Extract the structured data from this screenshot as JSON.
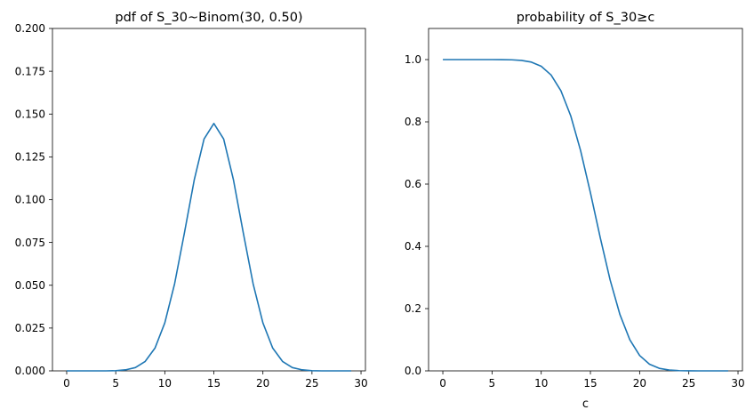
{
  "chart_data": [
    {
      "type": "line",
      "title": "pdf of S_30~Binom(30, 0.50)",
      "xlabel": "",
      "ylabel": "",
      "xlim": [
        -1.45,
        30.45
      ],
      "ylim": [
        0,
        0.2
      ],
      "xticks": [
        0,
        5,
        10,
        15,
        20,
        25,
        30
      ],
      "xtick_labels": [
        "0",
        "5",
        "10",
        "15",
        "20",
        "25",
        "30"
      ],
      "yticks": [
        0,
        0.025,
        0.05,
        0.075,
        0.1,
        0.125,
        0.15,
        0.175,
        0.2
      ],
      "ytick_labels": [
        "0.000",
        "0.025",
        "0.050",
        "0.075",
        "0.100",
        "0.125",
        "0.150",
        "0.175",
        "0.200"
      ],
      "grid": false,
      "color": "#1f77b4",
      "x": [
        0,
        1,
        2,
        3,
        4,
        5,
        6,
        7,
        8,
        9,
        10,
        11,
        12,
        13,
        14,
        15,
        16,
        17,
        18,
        19,
        20,
        21,
        22,
        23,
        24,
        25,
        26,
        27,
        28,
        29
      ],
      "y": [
        0.0,
        0.0,
        0.0,
        0.0,
        0.0,
        0.0001,
        0.0006,
        0.0019,
        0.0055,
        0.0133,
        0.028,
        0.0509,
        0.0806,
        0.1115,
        0.1354,
        0.1445,
        0.1354,
        0.1115,
        0.0806,
        0.0509,
        0.028,
        0.0133,
        0.0055,
        0.0019,
        0.0006,
        0.0001,
        0.0,
        0.0,
        0.0,
        0.0
      ]
    },
    {
      "type": "line",
      "title": "probability of S_30≥c",
      "xlabel": "c",
      "ylabel": "",
      "xlim": [
        -1.45,
        30.45
      ],
      "ylim": [
        0,
        1.1
      ],
      "xticks": [
        0,
        5,
        10,
        15,
        20,
        25,
        30
      ],
      "xtick_labels": [
        "0",
        "5",
        "10",
        "15",
        "20",
        "25",
        "30"
      ],
      "yticks": [
        0,
        0.2,
        0.4,
        0.6,
        0.8,
        1.0
      ],
      "ytick_labels": [
        "0.0",
        "0.2",
        "0.4",
        "0.6",
        "0.8",
        "1.0"
      ],
      "grid": false,
      "color": "#1f77b4",
      "x": [
        0,
        1,
        2,
        3,
        4,
        5,
        6,
        7,
        8,
        9,
        10,
        11,
        12,
        13,
        14,
        15,
        16,
        17,
        18,
        19,
        20,
        21,
        22,
        23,
        24,
        25,
        26,
        27,
        28,
        29
      ],
      "y": [
        1.0,
        1.0,
        1.0,
        1.0,
        1.0,
        1.0,
        0.9998,
        0.9993,
        0.9974,
        0.9919,
        0.9786,
        0.9506,
        0.8998,
        0.8192,
        0.7077,
        0.5722,
        0.4278,
        0.2923,
        0.1808,
        0.1002,
        0.0494,
        0.0214,
        0.0081,
        0.0026,
        0.0007,
        0.0002,
        0.0,
        0.0,
        0.0,
        0.0
      ]
    }
  ]
}
